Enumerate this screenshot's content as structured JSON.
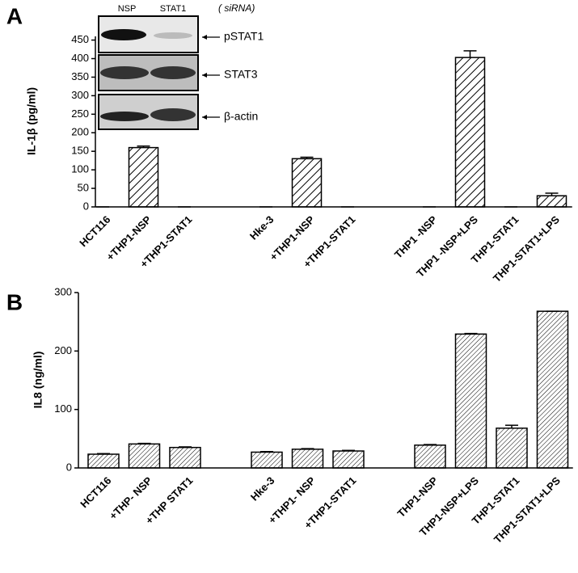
{
  "chart_data": [
    {
      "type": "bar",
      "panel": "A",
      "ylabel": "IL-1β (pg/ml)",
      "color": "#000000",
      "categories": [
        "HCT116",
        "+THP1-NSP",
        "+THP1-STAT1",
        null,
        "Hke-3",
        "+THP1-NSP",
        "+THP1-STAT1",
        null,
        "THP1 -NSP",
        "THP1 -NSP+LPS",
        "THP1-STAT1",
        "THP1-STAT1+LPS"
      ],
      "values": [
        0,
        160,
        0,
        null,
        0,
        130,
        0,
        null,
        0,
        403,
        0,
        30
      ],
      "errors": [
        0,
        4,
        0,
        null,
        0,
        4,
        0,
        null,
        0,
        18,
        0,
        7
      ],
      "ylim": [
        0,
        460
      ],
      "yticks": [
        0,
        50,
        100,
        150,
        200,
        250,
        300,
        350,
        400,
        450
      ],
      "inset": {
        "columns": [
          "NSP",
          "STAT1"
        ],
        "note": "( siRNA)",
        "bands": [
          "pSTAT1",
          "STAT3",
          "β-actin"
        ]
      }
    },
    {
      "type": "bar",
      "panel": "B",
      "ylabel": "IL8 (ng/ml)",
      "color": "#000000",
      "categories": [
        "HCT116",
        "+THP- NSP",
        "+THP STAT1",
        null,
        "Hke-3",
        "+THP1- NSP",
        "+THP1-STAT1",
        null,
        "THP1-NSP",
        "THP1-NSP+LPS",
        "THP1-STAT1",
        "THP1-STAT1+LPS"
      ],
      "values": [
        23.5,
        41,
        35,
        null,
        27,
        32,
        29,
        null,
        39,
        229,
        68,
        268
      ],
      "errors": [
        1,
        1,
        1,
        null,
        1,
        1,
        1,
        null,
        1,
        1,
        5,
        0
      ],
      "ylim": [
        0,
        300
      ],
      "yticks": [
        0,
        100,
        200,
        300
      ]
    }
  ]
}
